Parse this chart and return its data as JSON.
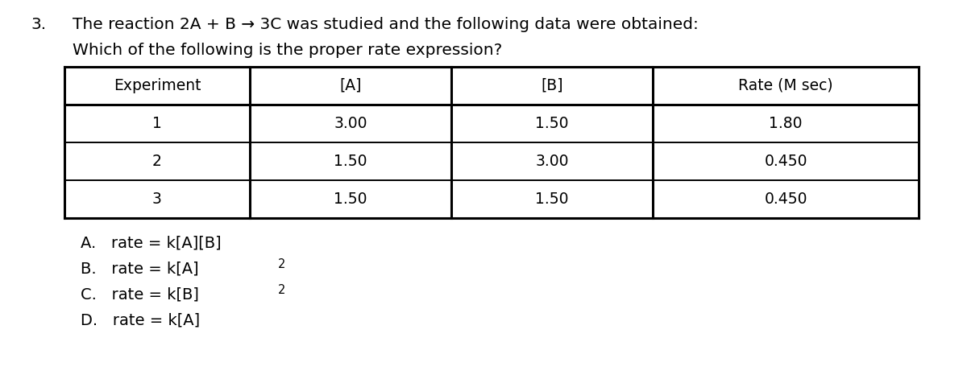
{
  "question_number": "3.",
  "question_line1": "The reaction 2A + B → 3C was studied and the following data were obtained:",
  "question_line2": "Which of the following is the proper rate expression?",
  "table_headers": [
    "Experiment",
    "[A]",
    "[B]",
    "Rate (M sec)"
  ],
  "table_rows": [
    [
      "1",
      "3.00",
      "1.50",
      "1.80"
    ],
    [
      "2",
      "1.50",
      "3.00",
      "0.450"
    ],
    [
      "3",
      "1.50",
      "1.50",
      "0.450"
    ]
  ],
  "answer_A": "A.   rate = k[A][B]",
  "answer_B_parts": [
    "B.   rate = k[A]",
    "2"
  ],
  "answer_C_parts": [
    "C.   rate = k[B]",
    "2"
  ],
  "answer_D": "D.   rate = k[A]",
  "bg_color": "#ffffff",
  "text_color": "#000000",
  "font_size_question": 14.5,
  "font_size_table": 13.5,
  "font_size_answers": 14.0
}
